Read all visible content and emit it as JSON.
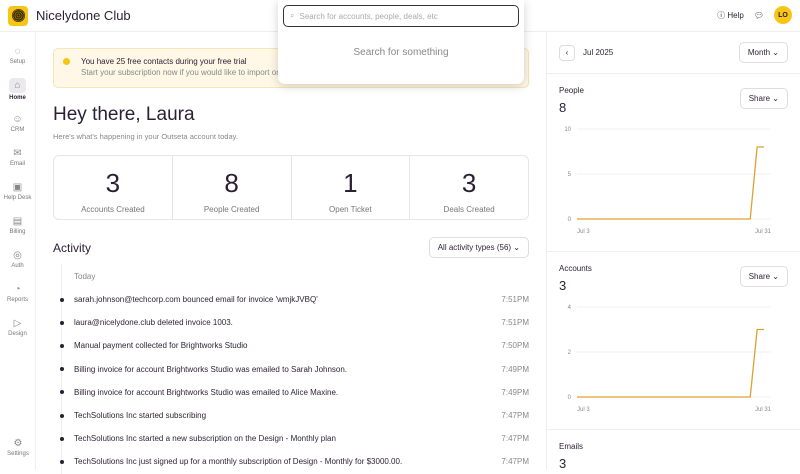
{
  "app": {
    "title": "Nicelydone Club",
    "help": "Help",
    "avatar": "LO"
  },
  "sidebar": {
    "items": [
      {
        "label": "Setup",
        "icon": "◌"
      },
      {
        "label": "Home",
        "icon": "⌂"
      },
      {
        "label": "CRM",
        "icon": "☺"
      },
      {
        "label": "Email",
        "icon": "✉"
      },
      {
        "label": "Help Desk",
        "icon": "▣"
      },
      {
        "label": "Billing",
        "icon": "▤"
      },
      {
        "label": "Auth",
        "icon": "◎"
      },
      {
        "label": "Reports",
        "icon": "◔"
      },
      {
        "label": "Design",
        "icon": "▷"
      }
    ],
    "settings": "Settings"
  },
  "banner": {
    "title": "You have 25 free contacts during your free trial",
    "text": "Start your subscription now if you would like to import or e"
  },
  "main": {
    "greeting": "Hey there, Laura",
    "subtitle": "Here's what's happening in your Outseta account today.",
    "stats": [
      {
        "value": "3",
        "label": "Accounts Created"
      },
      {
        "value": "8",
        "label": "People Created"
      },
      {
        "value": "1",
        "label": "Open Ticket"
      },
      {
        "value": "3",
        "label": "Deals Created"
      }
    ],
    "activity_title": "Activity",
    "filter": "All activity types (56)",
    "today": "Today",
    "activity": [
      {
        "text": "sarah.johnson@techcorp.com bounced email for invoice 'wmjkJVBQ'",
        "time": "7:51PM"
      },
      {
        "text": "laura@nicelydone.club deleted invoice 1003.",
        "time": "7:51PM"
      },
      {
        "text": "Manual payment collected for Brightworks Studio",
        "time": "7:50PM"
      },
      {
        "text": "Billing invoice for account Brightworks Studio was emailed to Sarah Johnson.",
        "time": "7:49PM"
      },
      {
        "text": "Billing invoice for account Brightworks Studio was emailed to Alice Maxine.",
        "time": "7:49PM"
      },
      {
        "text": "TechSolutions Inc started subscribing",
        "time": "7:47PM"
      },
      {
        "text": "TechSolutions Inc started a new subscription on the Design - Monthly plan",
        "time": "7:47PM"
      },
      {
        "text": "TechSolutions Inc just signed up for a monthly subscription of Design - Monthly for $3000.00.",
        "time": "7:47PM"
      }
    ]
  },
  "search": {
    "placeholder": "Search for accounts, people, deals, etc",
    "empty": "Search for something"
  },
  "right": {
    "period": "Jul 2025",
    "range": "Month",
    "share": "Share",
    "emails_label": "Emails",
    "emails_value": "3"
  },
  "chart_data": [
    {
      "type": "line",
      "title": "People",
      "total": "8",
      "color": "#e0a030",
      "x": [
        "Jul 3",
        "Jul 31"
      ],
      "ylim": [
        0,
        10
      ],
      "yticks": [
        "0",
        "5",
        "10"
      ],
      "points": [
        [
          3,
          0
        ],
        [
          28,
          0
        ],
        [
          29,
          8
        ],
        [
          30,
          8
        ]
      ]
    },
    {
      "type": "line",
      "title": "Accounts",
      "total": "3",
      "color": "#e0a030",
      "x": [
        "Jul 3",
        "Jul 31"
      ],
      "ylim": [
        0,
        4
      ],
      "yticks": [
        "0",
        "2",
        "4"
      ],
      "points": [
        [
          3,
          0
        ],
        [
          28,
          0
        ],
        [
          29,
          3
        ],
        [
          30,
          3
        ]
      ]
    }
  ]
}
